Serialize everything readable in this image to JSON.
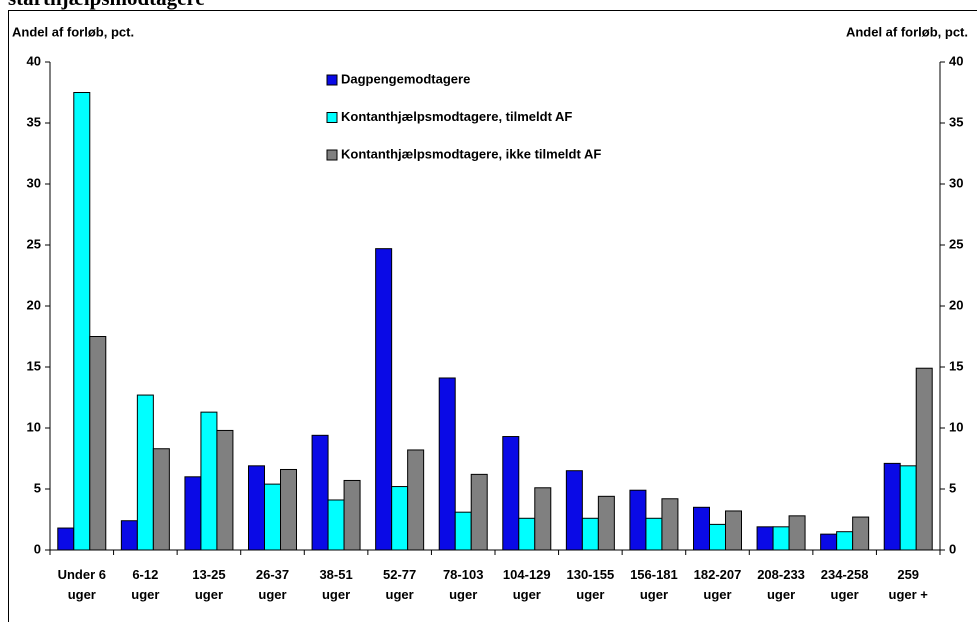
{
  "chart_data": {
    "type": "bar",
    "title": "starthjælpsmodtagere",
    "y_label": "Andel af forløb, pct.",
    "y2_label": "Andel af forløb, pct.",
    "categories": [
      "Under 6\nuger",
      "6-12\nuger",
      "13-25\nuger",
      "26-37\nuger",
      "38-51\nuger",
      "52-77\nuger",
      "78-103\nuger",
      "104-129\nuger",
      "130-155\nuger",
      "156-181\nuger",
      "182-207\nuger",
      "208-233\nuger",
      "234-258\nuger",
      "259\nuger +"
    ],
    "series": [
      {
        "name": "Dagpengemodtagere",
        "color": "#0a0ae6",
        "values": [
          1.8,
          2.4,
          6.0,
          6.9,
          9.4,
          24.7,
          14.1,
          9.3,
          6.5,
          4.9,
          3.5,
          1.9,
          1.3,
          7.1
        ]
      },
      {
        "name": "Kontanthjælpsmodtagere, tilmeldt AF",
        "color": "#00ffff",
        "values": [
          37.5,
          12.7,
          11.3,
          5.4,
          4.1,
          5.2,
          3.1,
          2.6,
          2.6,
          2.6,
          2.1,
          1.9,
          1.5,
          6.9
        ]
      },
      {
        "name": "Kontanthjælpsmodtagere, ikke tilmeldt AF",
        "color": "#808080",
        "values": [
          17.5,
          8.3,
          9.8,
          6.6,
          5.7,
          8.2,
          6.2,
          5.1,
          4.4,
          4.2,
          3.2,
          2.8,
          2.7,
          14.9
        ]
      }
    ],
    "ylim": [
      0,
      40
    ],
    "yticks": [
      0,
      5,
      10,
      15,
      20,
      25,
      30,
      35,
      40
    ],
    "y2lim": [
      0,
      40
    ],
    "y2ticks": [
      0,
      5,
      10,
      15,
      20,
      25,
      30,
      35,
      40
    ],
    "grid": false,
    "legend": "top"
  }
}
